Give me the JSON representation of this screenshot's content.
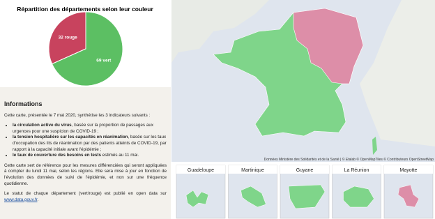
{
  "chart_data": {
    "type": "pie",
    "title": "Répartition des départements selon leur couleur",
    "values": [
      32,
      69
    ],
    "value_labels": [
      "32 rouge",
      "69 vert"
    ],
    "colors": [
      "#c8435e",
      "#5cbf63"
    ]
  },
  "info": {
    "title": "Informations",
    "intro": "Cette carte, présentée le 7 mai 2020, synthétise les 3 indicateurs suivants :",
    "bullets": [
      {
        "bold": "la circulation active du virus",
        "text": ", basée sur la proportion de passages aux urgences pour une suspicion de COVID-19 ;"
      },
      {
        "bold": "la tension hospitalière sur les capacités en réanimation",
        "text": ", basée sur les taux d'occupation des lits de réanimation par des patients atteints de COVID-19, par rapport à la capacité initiale avant l'épidémie ;"
      },
      {
        "bold": "le taux de couverture des besoins en tests",
        "text": " estimés au 11 mai."
      }
    ],
    "paragraph": "Cette carte sert de référence pour les mesures différenciées qui seront appliquées à compter du lundi 11 mai, selon les régions. Elle sera mise à jour en fonction de l'évolution des données de suivi de l'épidémie, et non sur une fréquence quotidienne.",
    "status": "Le statut de chaque département (vert/rouge) est publié en open data sur",
    "link": "www.data.gouv.fr",
    "link_end": "."
  },
  "map": {
    "attribution": "Données Ministère des Solidarités et de la Santé | © Etalab © OpenMapTiles © Contributeurs OpenStreetMap",
    "insets": [
      "Guadeloupe",
      "Martinique",
      "Guyane",
      "La Réunion",
      "Mayotte"
    ]
  }
}
